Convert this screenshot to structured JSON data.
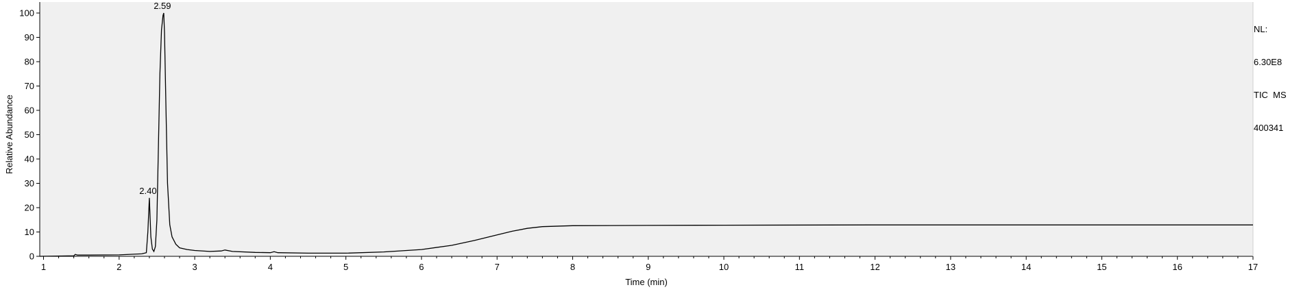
{
  "chart_data": {
    "type": "line",
    "title": "",
    "xlabel": "Time (min)",
    "ylabel": "Relative Abundance",
    "xlim": [
      0.95,
      17.0
    ],
    "ylim": [
      0,
      100
    ],
    "x_ticks": [
      1,
      2,
      3,
      4,
      5,
      6,
      7,
      8,
      9,
      10,
      11,
      12,
      13,
      14,
      15,
      16,
      17
    ],
    "y_ticks": [
      0,
      10,
      20,
      30,
      40,
      50,
      60,
      70,
      80,
      90,
      100
    ],
    "grid": false,
    "series": [
      {
        "name": "",
        "x": [
          0.95,
          1.4,
          1.42,
          1.45,
          1.6,
          2.0,
          2.3,
          2.36,
          2.38,
          2.4,
          2.42,
          2.44,
          2.46,
          2.48,
          2.5,
          2.52,
          2.54,
          2.56,
          2.58,
          2.59,
          2.6,
          2.62,
          2.64,
          2.67,
          2.7,
          2.75,
          2.8,
          2.9,
          3.0,
          3.2,
          3.35,
          3.4,
          3.5,
          3.8,
          4.0,
          4.05,
          4.1,
          4.5,
          5.0,
          5.5,
          6.0,
          6.4,
          6.7,
          7.0,
          7.2,
          7.4,
          7.6,
          8.0,
          9.0,
          10.0,
          12.0,
          14.0,
          16.0,
          17.0
        ],
        "y": [
          0.0,
          0.2,
          0.8,
          0.5,
          0.5,
          0.6,
          1.0,
          1.5,
          10.0,
          24.0,
          8.0,
          3.0,
          2.0,
          4.0,
          15.0,
          45.0,
          75.0,
          93.0,
          99.0,
          100.0,
          92.0,
          60.0,
          30.0,
          13.0,
          8.0,
          5.0,
          3.5,
          2.8,
          2.4,
          2.0,
          2.2,
          2.6,
          2.0,
          1.6,
          1.5,
          1.9,
          1.5,
          1.3,
          1.3,
          1.8,
          2.8,
          4.5,
          6.5,
          8.8,
          10.3,
          11.5,
          12.2,
          12.6,
          12.7,
          12.8,
          12.9,
          12.9,
          12.9,
          12.9
        ]
      }
    ],
    "peak_labels": [
      {
        "x": 2.4,
        "y": 24.0,
        "text": "2.40"
      },
      {
        "x": 2.59,
        "y": 100.0,
        "text": "2.59"
      }
    ],
    "side_info": [
      "NL:",
      "6.30E8",
      "TIC  MS",
      "400341"
    ]
  }
}
